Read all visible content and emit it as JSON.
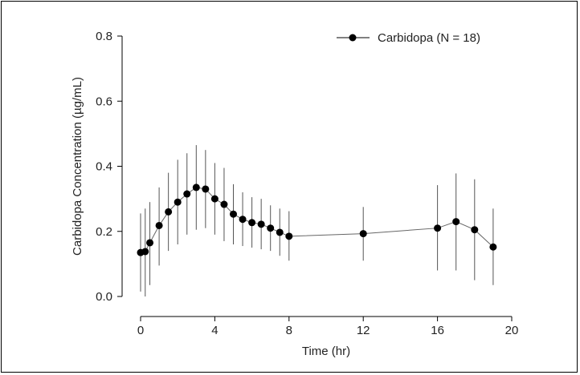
{
  "chart_data": {
    "type": "line",
    "title": "",
    "xlabel": "Time (hr)",
    "ylabel": "Carbidopa Concentration (µg/mL)",
    "xlim": [
      0,
      20
    ],
    "ylim": [
      0,
      0.8
    ],
    "xticks": [
      "0",
      "4",
      "8",
      "12",
      "16",
      "20"
    ],
    "yticks": [
      "0.0",
      "0.2",
      "0.4",
      "0.6",
      "0.8"
    ],
    "grid": false,
    "legend_position": "top-right",
    "series": [
      {
        "name": "Carbidopa (N = 18)",
        "color": "#000000",
        "marker": "filled-circle",
        "x": [
          0,
          0.25,
          0.5,
          1,
          1.5,
          2,
          2.5,
          3,
          3.5,
          4,
          4.5,
          5,
          5.5,
          6,
          6.5,
          7,
          7.5,
          8,
          12,
          16,
          17,
          18,
          19
        ],
        "y": [
          0.135,
          0.138,
          0.165,
          0.218,
          0.26,
          0.29,
          0.315,
          0.335,
          0.33,
          0.3,
          0.283,
          0.253,
          0.237,
          0.227,
          0.222,
          0.21,
          0.197,
          0.185,
          0.193,
          0.21,
          0.23,
          0.205,
          0.152
        ],
        "error_low": [
          0.015,
          0.0,
          0.035,
          0.095,
          0.14,
          0.16,
          0.19,
          0.205,
          0.21,
          0.19,
          0.17,
          0.16,
          0.155,
          0.15,
          0.145,
          0.14,
          0.125,
          0.11,
          0.11,
          0.08,
          0.08,
          0.05,
          0.035
        ],
        "error_high": [
          0.255,
          0.27,
          0.29,
          0.335,
          0.38,
          0.42,
          0.44,
          0.465,
          0.45,
          0.41,
          0.395,
          0.345,
          0.32,
          0.305,
          0.3,
          0.28,
          0.27,
          0.262,
          0.275,
          0.342,
          0.378,
          0.36,
          0.27
        ]
      }
    ]
  }
}
